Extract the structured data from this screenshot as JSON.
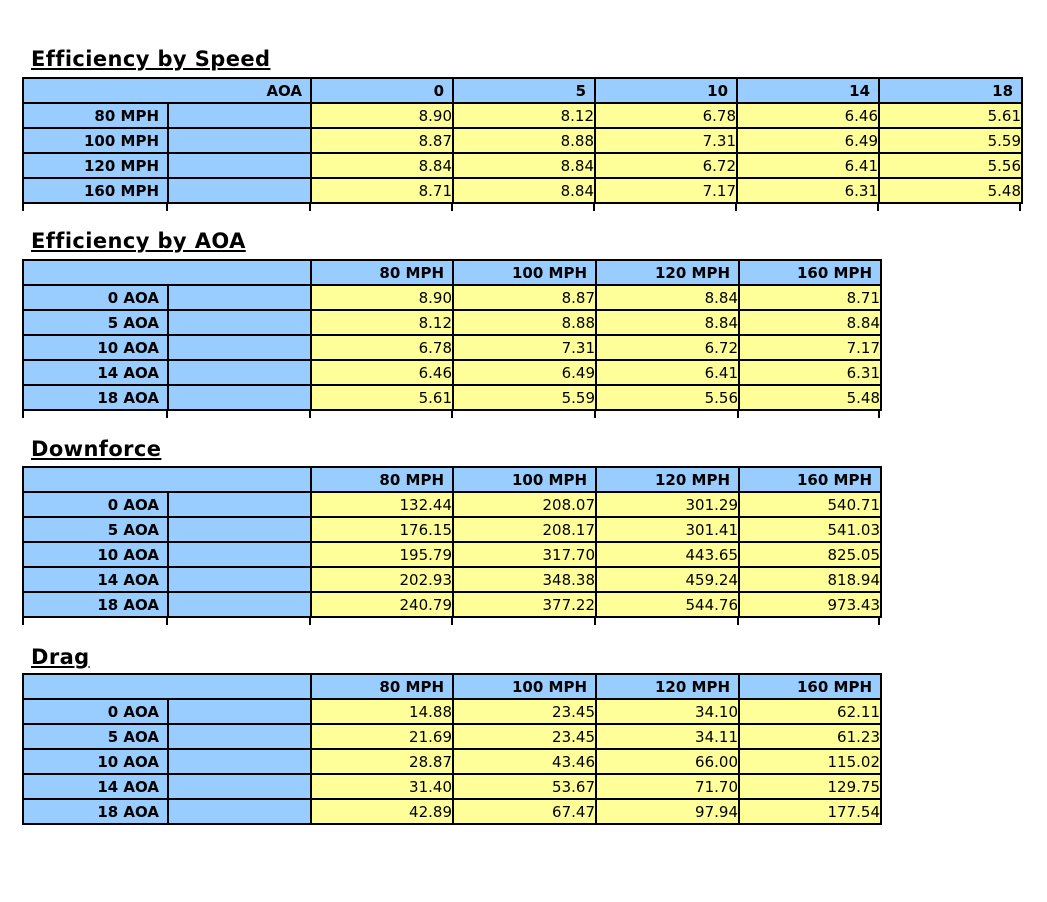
{
  "colors": {
    "header_fill_blue": "#99CCFF",
    "value_fill_yellow": "#FFFF99",
    "grid_border": "#000000",
    "background": "#FFFFFF",
    "text": "#000000"
  },
  "tables": [
    {
      "title": "Efficiency by Speed",
      "corner_label": "AOA",
      "col_headers": [
        "0",
        "5",
        "10",
        "14",
        "18"
      ],
      "row_headers": [
        "80 MPH",
        "100 MPH",
        "120 MPH",
        "160 MPH"
      ],
      "values": [
        [
          "8.90",
          "8.12",
          "6.78",
          "6.46",
          "5.61"
        ],
        [
          "8.87",
          "8.88",
          "7.31",
          "6.49",
          "5.59"
        ],
        [
          "8.84",
          "8.84",
          "6.72",
          "6.41",
          "5.56"
        ],
        [
          "8.71",
          "8.84",
          "7.17",
          "6.31",
          "5.48"
        ]
      ]
    },
    {
      "title": "Efficiency by AOA",
      "corner_label": "",
      "col_headers": [
        "80 MPH",
        "100 MPH",
        "120 MPH",
        "160 MPH"
      ],
      "row_headers": [
        "0 AOA",
        "5 AOA",
        "10 AOA",
        "14 AOA",
        "18 AOA"
      ],
      "values": [
        [
          "8.90",
          "8.87",
          "8.84",
          "8.71"
        ],
        [
          "8.12",
          "8.88",
          "8.84",
          "8.84"
        ],
        [
          "6.78",
          "7.31",
          "6.72",
          "7.17"
        ],
        [
          "6.46",
          "6.49",
          "6.41",
          "6.31"
        ],
        [
          "5.61",
          "5.59",
          "5.56",
          "5.48"
        ]
      ]
    },
    {
      "title": "Downforce",
      "corner_label": "",
      "col_headers": [
        "80 MPH",
        "100 MPH",
        "120 MPH",
        "160 MPH"
      ],
      "row_headers": [
        "0 AOA",
        "5 AOA",
        "10 AOA",
        "14 AOA",
        "18 AOA"
      ],
      "values": [
        [
          "132.44",
          "208.07",
          "301.29",
          "540.71"
        ],
        [
          "176.15",
          "208.17",
          "301.41",
          "541.03"
        ],
        [
          "195.79",
          "317.70",
          "443.65",
          "825.05"
        ],
        [
          "202.93",
          "348.38",
          "459.24",
          "818.94"
        ],
        [
          "240.79",
          "377.22",
          "544.76",
          "973.43"
        ]
      ]
    },
    {
      "title": "Drag",
      "corner_label": "",
      "col_headers": [
        "80 MPH",
        "100 MPH",
        "120 MPH",
        "160 MPH"
      ],
      "row_headers": [
        "0 AOA",
        "5 AOA",
        "10 AOA",
        "14 AOA",
        "18 AOA"
      ],
      "values": [
        [
          "14.88",
          "23.45",
          "34.10",
          "62.11"
        ],
        [
          "21.69",
          "23.45",
          "34.11",
          "61.23"
        ],
        [
          "28.87",
          "43.46",
          "66.00",
          "115.02"
        ],
        [
          "31.40",
          "53.67",
          "71.70",
          "129.75"
        ],
        [
          "42.89",
          "67.47",
          "97.94",
          "177.54"
        ]
      ]
    }
  ]
}
